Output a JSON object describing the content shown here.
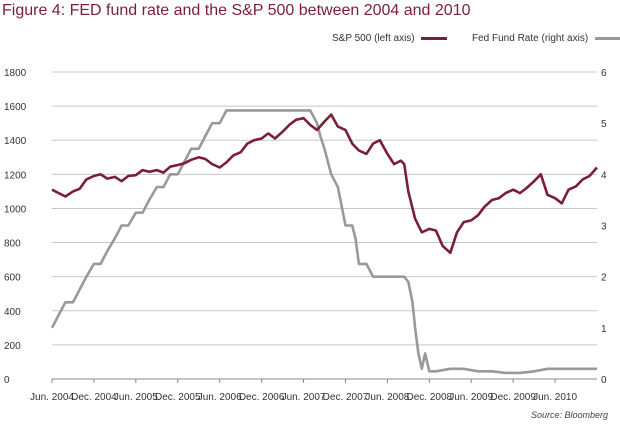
{
  "figure": {
    "title": "Figure 4: FED fund rate and the S&P 500 between 2004 and 2010",
    "source": "Source: Bloomberg"
  },
  "chart_data": {
    "type": "line",
    "title": "Figure 4: FED fund rate and the S&P 500 between 2004 and 2010",
    "x_tick_labels": [
      "Jun. 2004",
      "Dec. 2004",
      "Jun. 2005",
      "Dec. 2005",
      "Jun. 2006",
      "Dec. 2006",
      "Jun. 2007",
      "Dec. 2007",
      "Jun. 2008",
      "Dec. 2008",
      "Jun. 2009",
      "Dec. 2009",
      "Jun. 2010"
    ],
    "x_range": [
      2004.42,
      2010.92
    ],
    "y_left": {
      "label": "S&P 500 (left axis)",
      "lim": [
        0,
        1800
      ],
      "ticks": [
        0,
        200,
        400,
        600,
        800,
        1000,
        1200,
        1400,
        1600,
        1800
      ]
    },
    "y_right": {
      "label": "Fed Fund Rate (right axis)",
      "lim": [
        0,
        6
      ],
      "ticks": [
        0,
        1,
        2,
        3,
        4,
        5,
        6
      ]
    },
    "grid": "horizontal",
    "legend_position": "top-right",
    "colors": {
      "sp500": "#7a1f35",
      "fed": "#999999",
      "grid": "#c8c8c8",
      "title": "#7a1f35"
    },
    "series": [
      {
        "name": "S&P 500 (left axis)",
        "axis": "left",
        "x": [
          2004.42,
          2004.5,
          2004.58,
          2004.67,
          2004.75,
          2004.83,
          2004.92,
          2005.0,
          2005.08,
          2005.17,
          2005.25,
          2005.33,
          2005.42,
          2005.5,
          2005.58,
          2005.67,
          2005.75,
          2005.83,
          2005.92,
          2006.0,
          2006.08,
          2006.17,
          2006.25,
          2006.33,
          2006.42,
          2006.5,
          2006.58,
          2006.67,
          2006.75,
          2006.83,
          2006.92,
          2007.0,
          2007.08,
          2007.17,
          2007.25,
          2007.33,
          2007.42,
          2007.5,
          2007.58,
          2007.67,
          2007.75,
          2007.83,
          2007.92,
          2008.0,
          2008.08,
          2008.17,
          2008.25,
          2008.33,
          2008.42,
          2008.5,
          2008.58,
          2008.62,
          2008.67,
          2008.75,
          2008.83,
          2008.92,
          2009.0,
          2009.08,
          2009.17,
          2009.25,
          2009.33,
          2009.42,
          2009.5,
          2009.58,
          2009.67,
          2009.75,
          2009.83,
          2009.92,
          2010.0,
          2010.08,
          2010.17,
          2010.25,
          2010.33,
          2010.42,
          2010.5,
          2010.58,
          2010.67,
          2010.75,
          2010.83,
          2010.92
        ],
        "values": [
          1110,
          1090,
          1070,
          1100,
          1115,
          1170,
          1190,
          1200,
          1175,
          1185,
          1160,
          1190,
          1195,
          1225,
          1215,
          1225,
          1210,
          1245,
          1255,
          1265,
          1285,
          1300,
          1290,
          1260,
          1240,
          1270,
          1310,
          1330,
          1380,
          1400,
          1410,
          1440,
          1410,
          1450,
          1490,
          1520,
          1530,
          1490,
          1460,
          1510,
          1550,
          1480,
          1460,
          1380,
          1340,
          1320,
          1380,
          1400,
          1320,
          1260,
          1280,
          1260,
          1100,
          940,
          860,
          880,
          870,
          780,
          740,
          860,
          920,
          930,
          960,
          1010,
          1050,
          1060,
          1090,
          1110,
          1090,
          1120,
          1160,
          1200,
          1080,
          1060,
          1030,
          1110,
          1130,
          1170,
          1190,
          1240
        ]
      },
      {
        "name": "Fed Fund Rate (right axis)",
        "axis": "right",
        "x": [
          2004.42,
          2004.5,
          2004.58,
          2004.67,
          2004.75,
          2004.83,
          2004.92,
          2005.0,
          2005.08,
          2005.17,
          2005.25,
          2005.33,
          2005.42,
          2005.5,
          2005.58,
          2005.67,
          2005.75,
          2005.83,
          2005.92,
          2006.0,
          2006.08,
          2006.17,
          2006.25,
          2006.33,
          2006.42,
          2006.5,
          2006.58,
          2006.75,
          2006.92,
          2007.08,
          2007.25,
          2007.42,
          2007.5,
          2007.58,
          2007.62,
          2007.67,
          2007.75,
          2007.83,
          2007.92,
          2008.0,
          2008.04,
          2008.08,
          2008.17,
          2008.25,
          2008.33,
          2008.5,
          2008.62,
          2008.67,
          2008.72,
          2008.75,
          2008.79,
          2008.83,
          2008.87,
          2008.92,
          2009.0,
          2009.17,
          2009.33,
          2009.5,
          2009.67,
          2009.83,
          2010.0,
          2010.17,
          2010.33,
          2010.5,
          2010.67,
          2010.83,
          2010.92
        ],
        "values": [
          1.0,
          1.25,
          1.5,
          1.5,
          1.75,
          2.0,
          2.25,
          2.25,
          2.5,
          2.75,
          3.0,
          3.0,
          3.25,
          3.25,
          3.5,
          3.75,
          3.75,
          4.0,
          4.0,
          4.25,
          4.5,
          4.5,
          4.75,
          5.0,
          5.0,
          5.25,
          5.25,
          5.25,
          5.25,
          5.25,
          5.25,
          5.25,
          5.25,
          5.0,
          4.75,
          4.5,
          4.0,
          3.75,
          3.0,
          3.0,
          2.75,
          2.25,
          2.25,
          2.0,
          2.0,
          2.0,
          2.0,
          1.9,
          1.5,
          1.0,
          0.5,
          0.2,
          0.5,
          0.15,
          0.15,
          0.2,
          0.2,
          0.15,
          0.15,
          0.12,
          0.12,
          0.15,
          0.2,
          0.2,
          0.2,
          0.2,
          0.2
        ]
      }
    ]
  }
}
